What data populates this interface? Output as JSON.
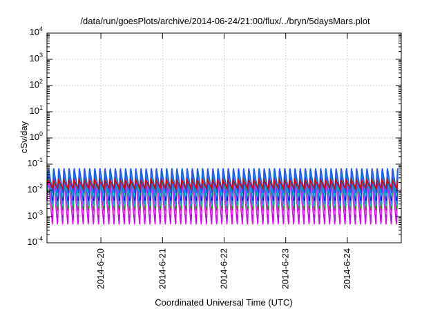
{
  "chart_data": {
    "type": "line",
    "title": "/data/run/goesPlots/archive/2014-06-24/21:00/flux/../bryn/5daysMars.plot",
    "xlabel": "Coordinated Universal Time (UTC)",
    "ylabel": "cSv/day",
    "yscale": "log",
    "ylim": [
      0.0001,
      10000
    ],
    "xlim": [
      "2014-06-19 03:00",
      "2014-06-24 21:00"
    ],
    "grid": true,
    "x_ticks": [
      {
        "value": "2014-06-20 00:00",
        "label": "2014-6-20"
      },
      {
        "value": "2014-06-21 00:00",
        "label": "2014-6-21"
      },
      {
        "value": "2014-06-22 00:00",
        "label": "2014-6-22"
      },
      {
        "value": "2014-06-23 00:00",
        "label": "2014-6-23"
      },
      {
        "value": "2014-06-24 00:00",
        "label": "2014-6-24"
      }
    ],
    "y_ticks": [
      {
        "value": 0.0001,
        "base": "10",
        "exp": "-4"
      },
      {
        "value": 0.001,
        "base": "10",
        "exp": "-3"
      },
      {
        "value": 0.01,
        "base": "10",
        "exp": "-2"
      },
      {
        "value": 0.1,
        "base": "10",
        "exp": "-1"
      },
      {
        "value": 1,
        "base": "10",
        "exp": "0"
      },
      {
        "value": 10,
        "base": "10",
        "exp": "1"
      },
      {
        "value": 100,
        "base": "10",
        "exp": "2"
      },
      {
        "value": 1000,
        "base": "10",
        "exp": "3"
      },
      {
        "value": 10000,
        "base": "10",
        "exp": "4"
      }
    ],
    "oscillation": {
      "period_hours": 2,
      "phase_hours": 0.5,
      "cycles": 69
    },
    "series": [
      {
        "color": "#ff00ff",
        "peak": 0.032,
        "trough": 0.0005
      },
      {
        "color": "#cc00ff",
        "peak": 0.028,
        "trough": 0.0006
      },
      {
        "color": "#aa22cc",
        "peak": 0.03,
        "trough": 0.0008
      },
      {
        "color": "#ff44ff",
        "peak": 0.025,
        "trough": 0.0012
      },
      {
        "color": "#cc00aa",
        "peak": 0.03,
        "trough": 0.0017
      },
      {
        "color": "#00aa00",
        "peak": 0.04,
        "trough": 0.002
      },
      {
        "color": "#00cccc",
        "peak": 0.045,
        "trough": 0.0025
      },
      {
        "color": "#1e90ff",
        "peak": 0.05,
        "trough": 0.003
      },
      {
        "color": "#0000ff",
        "peak": 0.055,
        "trough": 0.004
      },
      {
        "color": "#3344ff",
        "peak": 0.06,
        "trough": 0.005
      },
      {
        "color": "#00cccc",
        "peak": 0.065,
        "trough": 0.006
      },
      {
        "color": "#2255ff",
        "peak": 0.07,
        "trough": 0.008
      },
      {
        "color": "#e00000",
        "peak": 0.025,
        "trough": 0.012
      }
    ]
  }
}
